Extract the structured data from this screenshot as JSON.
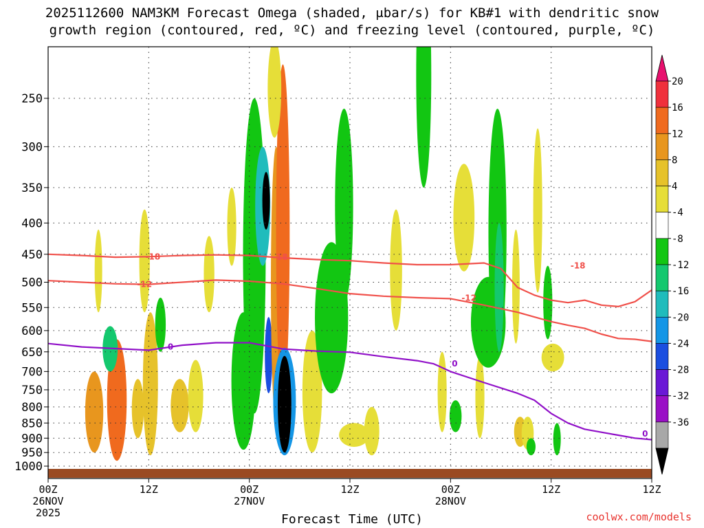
{
  "title": {
    "line1": "2025112600 NAM3KM Forecast Omega (shaded, μbar/s) for KB#1 with dendritic snow",
    "line2": "growth region (contoured, red, ºC) and freezing level (contoured, purple, ºC)"
  },
  "credit": "coolwx.com/models",
  "chart_data": {
    "type": "heatmap",
    "xlabel": "Forecast Time (UTC)",
    "ylabel": "",
    "x_range_hours": [
      0,
      72
    ],
    "y_range_hpa": [
      1000,
      200
    ],
    "y_scale": "log-pressure",
    "grid": true,
    "x_ticks": [
      {
        "hour": 0,
        "label1": "00Z",
        "label2": "26NOV",
        "label3": "2025"
      },
      {
        "hour": 12,
        "label1": "12Z",
        "label2": "",
        "label3": ""
      },
      {
        "hour": 24,
        "label1": "00Z",
        "label2": "27NOV",
        "label3": ""
      },
      {
        "hour": 36,
        "label1": "12Z",
        "label2": "",
        "label3": ""
      },
      {
        "hour": 48,
        "label1": "00Z",
        "label2": "28NOV",
        "label3": ""
      },
      {
        "hour": 60,
        "label1": "12Z",
        "label2": "",
        "label3": ""
      }
    ],
    "y_ticks": [
      250,
      300,
      350,
      400,
      450,
      500,
      550,
      600,
      650,
      700,
      750,
      800,
      850,
      900,
      950,
      1000
    ],
    "colorbar": {
      "labels": [
        "20",
        "16",
        "12",
        "8",
        "4",
        "-4",
        "-8",
        "-12",
        "-16",
        "-20",
        "-24",
        "-28",
        "-32",
        "-36"
      ],
      "colors": [
        "#e8106e",
        "#f0303c",
        "#f06a1e",
        "#e8961e",
        "#e6c22a",
        "#e6de38",
        "#ffffff",
        "#12c612",
        "#14c86e",
        "#20bcbc",
        "#1496e6",
        "#1a4ee0",
        "#6a18d6",
        "#9a10c6",
        "#a8a8a8",
        "#000000"
      ]
    },
    "contours": [
      {
        "label": "-18",
        "color": "#f0504a",
        "points": [
          [
            0,
            450
          ],
          [
            4,
            452
          ],
          [
            8,
            455
          ],
          [
            12,
            454
          ],
          [
            16,
            452
          ],
          [
            20,
            451
          ],
          [
            24,
            452
          ],
          [
            28,
            456
          ],
          [
            32,
            459
          ],
          [
            36,
            461
          ],
          [
            40,
            465
          ],
          [
            44,
            468
          ],
          [
            48,
            468
          ],
          [
            52,
            465
          ],
          [
            54,
            475
          ],
          [
            56,
            510
          ],
          [
            58,
            525
          ],
          [
            60,
            535
          ],
          [
            62,
            540
          ],
          [
            64,
            535
          ],
          [
            66,
            545
          ],
          [
            68,
            548
          ],
          [
            70,
            538
          ],
          [
            72,
            515
          ]
        ]
      },
      {
        "label": "-12",
        "color": "#f0504a",
        "points": [
          [
            0,
            497
          ],
          [
            4,
            500
          ],
          [
            8,
            503
          ],
          [
            12,
            504
          ],
          [
            16,
            500
          ],
          [
            20,
            496
          ],
          [
            24,
            498
          ],
          [
            28,
            503
          ],
          [
            32,
            512
          ],
          [
            36,
            522
          ],
          [
            40,
            527
          ],
          [
            44,
            530
          ],
          [
            48,
            532
          ],
          [
            52,
            545
          ],
          [
            56,
            560
          ],
          [
            58,
            570
          ],
          [
            60,
            580
          ],
          [
            62,
            588
          ],
          [
            64,
            595
          ],
          [
            66,
            608
          ],
          [
            68,
            618
          ],
          [
            70,
            620
          ],
          [
            72,
            625
          ]
        ]
      },
      {
        "label": "0",
        "color": "#9010c8",
        "points": [
          [
            0,
            630
          ],
          [
            4,
            638
          ],
          [
            8,
            642
          ],
          [
            12,
            646
          ],
          [
            16,
            634
          ],
          [
            20,
            628
          ],
          [
            24,
            628
          ],
          [
            28,
            643
          ],
          [
            32,
            648
          ],
          [
            36,
            651
          ],
          [
            40,
            662
          ],
          [
            44,
            672
          ],
          [
            46,
            680
          ],
          [
            48,
            700
          ],
          [
            52,
            730
          ],
          [
            56,
            760
          ],
          [
            58,
            780
          ],
          [
            60,
            820
          ],
          [
            62,
            850
          ],
          [
            64,
            870
          ],
          [
            66,
            880
          ],
          [
            68,
            890
          ],
          [
            70,
            900
          ],
          [
            72,
            905
          ]
        ]
      }
    ],
    "contour_labels": [
      {
        "text": "-18",
        "hour": 12.5,
        "hpa": 454
      },
      {
        "text": "-12",
        "hour": 11.5,
        "hpa": 504
      },
      {
        "text": "-18",
        "hour": 27.7,
        "hpa": 455
      },
      {
        "text": "-18",
        "hour": 63.2,
        "hpa": 470
      },
      {
        "text": "-12",
        "hour": 50.2,
        "hpa": 531
      },
      {
        "text": "0",
        "hour": 14.6,
        "hpa": 638
      },
      {
        "text": "0",
        "hour": 48.5,
        "hpa": 680
      },
      {
        "text": "0",
        "hour": 71.2,
        "hpa": 885
      }
    ],
    "omega_cells": [
      {
        "hour": 5.5,
        "p1": 700,
        "p2": 950,
        "w": 1.2,
        "value": 12
      },
      {
        "hour": 8.2,
        "p1": 620,
        "p2": 980,
        "w": 1.3,
        "value": 16
      },
      {
        "hour": 7.4,
        "p1": 590,
        "p2": 700,
        "w": 1.0,
        "value": -12
      },
      {
        "hour": 6.0,
        "p1": 410,
        "p2": 560,
        "w": 0.5,
        "value": 4
      },
      {
        "hour": 10.7,
        "p1": 720,
        "p2": 900,
        "w": 0.8,
        "value": 8
      },
      {
        "hour": 11.5,
        "p1": 380,
        "p2": 560,
        "w": 0.7,
        "value": 4
      },
      {
        "hour": 12.2,
        "p1": 560,
        "p2": 960,
        "w": 1.0,
        "value": 8
      },
      {
        "hour": 13.4,
        "p1": 530,
        "p2": 650,
        "w": 0.7,
        "value": -8
      },
      {
        "hour": 15.7,
        "p1": 720,
        "p2": 880,
        "w": 1.2,
        "value": 8
      },
      {
        "hour": 17.6,
        "p1": 670,
        "p2": 880,
        "w": 1.0,
        "value": 4
      },
      {
        "hour": 19.2,
        "p1": 420,
        "p2": 560,
        "w": 0.7,
        "value": 4
      },
      {
        "hour": 21.9,
        "p1": 350,
        "p2": 470,
        "w": 0.6,
        "value": 4
      },
      {
        "hour": 23.3,
        "p1": 560,
        "p2": 940,
        "w": 1.6,
        "value": -8
      },
      {
        "hour": 24.6,
        "p1": 250,
        "p2": 820,
        "w": 1.5,
        "value": -8
      },
      {
        "hour": 25.6,
        "p1": 300,
        "p2": 470,
        "w": 1.0,
        "value": -16
      },
      {
        "hour": 26.0,
        "p1": 330,
        "p2": 410,
        "w": 0.5,
        "value": -36
      },
      {
        "hour": 26.3,
        "p1": 570,
        "p2": 760,
        "w": 0.5,
        "value": -24
      },
      {
        "hour": 27.2,
        "p1": 300,
        "p2": 850,
        "w": 0.7,
        "value": 12
      },
      {
        "hour": 28.0,
        "p1": 220,
        "p2": 780,
        "w": 0.9,
        "value": 16
      },
      {
        "hour": 28.2,
        "p1": 640,
        "p2": 960,
        "w": 1.5,
        "value": -20
      },
      {
        "hour": 28.2,
        "p1": 660,
        "p2": 950,
        "w": 0.9,
        "value": -36
      },
      {
        "hour": 27.0,
        "p1": 200,
        "p2": 290,
        "w": 0.9,
        "value": 4
      },
      {
        "hour": 31.5,
        "p1": 600,
        "p2": 950,
        "w": 1.3,
        "value": 4
      },
      {
        "hour": 33.8,
        "p1": 430,
        "p2": 760,
        "w": 2.2,
        "value": -8
      },
      {
        "hour": 35.3,
        "p1": 260,
        "p2": 540,
        "w": 1.2,
        "value": -8
      },
      {
        "hour": 36.5,
        "p1": 850,
        "p2": 930,
        "w": 2.0,
        "value": 4
      },
      {
        "hour": 38.6,
        "p1": 800,
        "p2": 960,
        "w": 1.0,
        "value": 4
      },
      {
        "hour": 41.5,
        "p1": 380,
        "p2": 600,
        "w": 0.8,
        "value": 4
      },
      {
        "hour": 44.8,
        "p1": 150,
        "p2": 350,
        "w": 1.0,
        "value": -8
      },
      {
        "hour": 47.0,
        "p1": 650,
        "p2": 880,
        "w": 0.6,
        "value": 4
      },
      {
        "hour": 48.6,
        "p1": 780,
        "p2": 880,
        "w": 0.8,
        "value": -8
      },
      {
        "hour": 49.6,
        "p1": 320,
        "p2": 480,
        "w": 1.4,
        "value": 4
      },
      {
        "hour": 51.5,
        "p1": 660,
        "p2": 900,
        "w": 0.6,
        "value": 4
      },
      {
        "hour": 52.5,
        "p1": 490,
        "p2": 690,
        "w": 2.3,
        "value": -8
      },
      {
        "hour": 53.6,
        "p1": 260,
        "p2": 660,
        "w": 1.2,
        "value": -8
      },
      {
        "hour": 53.8,
        "p1": 400,
        "p2": 650,
        "w": 0.6,
        "value": -12
      },
      {
        "hour": 55.8,
        "p1": 410,
        "p2": 630,
        "w": 0.5,
        "value": 4
      },
      {
        "hour": 56.3,
        "p1": 830,
        "p2": 930,
        "w": 0.8,
        "value": 8
      },
      {
        "hour": 57.2,
        "p1": 830,
        "p2": 940,
        "w": 0.8,
        "value": 4
      },
      {
        "hour": 57.6,
        "p1": 900,
        "p2": 960,
        "w": 0.6,
        "value": -8
      },
      {
        "hour": 59.6,
        "p1": 470,
        "p2": 620,
        "w": 0.6,
        "value": -8
      },
      {
        "hour": 60.2,
        "p1": 630,
        "p2": 700,
        "w": 1.5,
        "value": 4
      },
      {
        "hour": 60.7,
        "p1": 850,
        "p2": 960,
        "w": 0.5,
        "value": -8
      },
      {
        "hour": 58.4,
        "p1": 280,
        "p2": 520,
        "w": 0.6,
        "value": 4
      }
    ]
  }
}
